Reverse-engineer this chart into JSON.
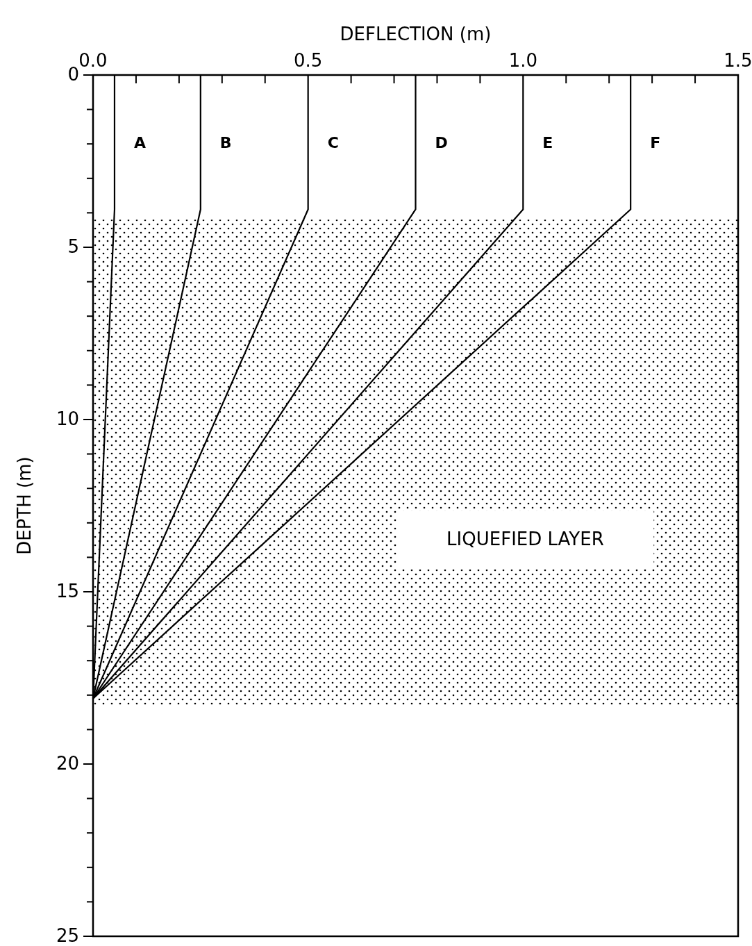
{
  "chart_data": {
    "type": "line",
    "xlabel": "DEFLECTION (m)",
    "ylabel": "DEPTH (m)",
    "xlim": [
      0,
      1.5
    ],
    "ylim": [
      25,
      0
    ],
    "xticks": [
      {
        "value": 0,
        "label": "0.0"
      },
      {
        "value": 0.1,
        "label": null
      },
      {
        "value": 0.2,
        "label": null
      },
      {
        "value": 0.3,
        "label": null
      },
      {
        "value": 0.4,
        "label": null
      },
      {
        "value": 0.5,
        "label": "0.5"
      },
      {
        "value": 0.6,
        "label": null
      },
      {
        "value": 0.7,
        "label": null
      },
      {
        "value": 0.8,
        "label": null
      },
      {
        "value": 0.9,
        "label": null
      },
      {
        "value": 1.0,
        "label": "1.0"
      },
      {
        "value": 1.1,
        "label": null
      },
      {
        "value": 1.2,
        "label": null
      },
      {
        "value": 1.3,
        "label": null
      },
      {
        "value": 1.4,
        "label": null
      },
      {
        "value": 1.5,
        "label": "1.5"
      }
    ],
    "yticks": [
      0,
      {
        "value": 1,
        "label": null
      },
      {
        "value": 2,
        "label": null
      },
      {
        "value": 3,
        "label": null
      },
      {
        "value": 4,
        "label": null
      },
      5,
      {
        "value": 6,
        "label": null
      },
      {
        "value": 7,
        "label": null
      },
      {
        "value": 8,
        "label": null
      },
      {
        "value": 9,
        "label": null
      },
      10,
      {
        "value": 11,
        "label": null
      },
      {
        "value": 12,
        "label": null
      },
      {
        "value": 13,
        "label": null
      },
      {
        "value": 14,
        "label": null
      },
      15,
      {
        "value": 16,
        "label": null
      },
      {
        "value": 17,
        "label": null
      },
      {
        "value": 18,
        "label": null
      },
      {
        "value": 19,
        "label": null
      },
      20,
      {
        "value": 21,
        "label": null
      },
      {
        "value": 22,
        "label": null
      },
      {
        "value": 23,
        "label": null
      },
      {
        "value": 24,
        "label": null
      },
      25
    ],
    "series": [
      {
        "name": "A",
        "color": "#000000",
        "x": [
          0.05,
          0.05,
          0
        ],
        "values": [
          0,
          3.9,
          18.1
        ]
      },
      {
        "name": "B",
        "color": "#000000",
        "x": [
          0.25,
          0.25,
          0
        ],
        "values": [
          0,
          3.9,
          18.1
        ]
      },
      {
        "name": "C",
        "color": "#000000",
        "x": [
          0.5,
          0.5,
          0
        ],
        "values": [
          0,
          3.9,
          18.1
        ]
      },
      {
        "name": "D",
        "color": "#000000",
        "x": [
          0.75,
          0.75,
          0
        ],
        "values": [
          0,
          3.9,
          18.1
        ]
      },
      {
        "name": "E",
        "color": "#000000",
        "x": [
          1.0,
          1.0,
          0
        ],
        "values": [
          0,
          3.9,
          18.1
        ]
      },
      {
        "name": "F",
        "color": "#000000",
        "x": [
          1.25,
          1.25,
          0
        ],
        "values": [
          0,
          3.9,
          18.1
        ]
      }
    ],
    "bands": [
      {
        "axis": "y",
        "from": 4.2,
        "to": 18.3,
        "color": "#000000"
      }
    ],
    "annotations": [
      "LIQUEFIED LAYER"
    ],
    "marker": "none",
    "line_style": "solid"
  }
}
